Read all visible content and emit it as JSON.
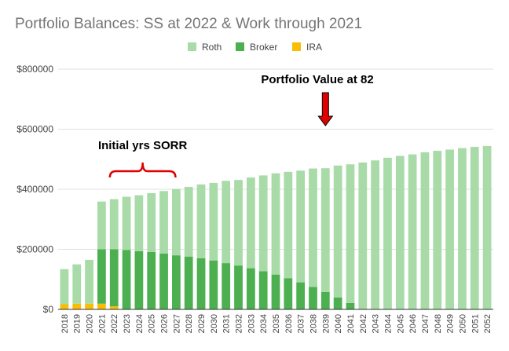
{
  "chart_data": {
    "type": "bar",
    "stacked": true,
    "title": "Portfolio Balances: SS at 2022 & Work through 2021",
    "xlabel": "",
    "ylabel": "",
    "ylim": [
      0,
      800000
    ],
    "y_ticks": [
      0,
      200000,
      400000,
      600000,
      800000
    ],
    "y_tick_labels": [
      "$0",
      "$200000",
      "$400000",
      "$600000",
      "$800000"
    ],
    "grid": true,
    "legend_position": "top",
    "categories": [
      "2018",
      "2019",
      "2020",
      "2021",
      "2022",
      "2023",
      "2024",
      "2025",
      "2026",
      "2027",
      "2028",
      "2029",
      "2030",
      "2031",
      "2032",
      "2033",
      "2034",
      "2035",
      "2036",
      "2037",
      "2038",
      "2039",
      "2040",
      "2041",
      "2042",
      "2043",
      "2044",
      "2045",
      "2046",
      "2047",
      "2048",
      "2049",
      "2050",
      "2051",
      "2052"
    ],
    "series": [
      {
        "name": "IRA",
        "color": "#fbbc04",
        "values": [
          17000,
          19000,
          19000,
          19000,
          10000,
          0,
          0,
          0,
          0,
          0,
          0,
          0,
          0,
          0,
          0,
          0,
          0,
          0,
          0,
          0,
          0,
          0,
          0,
          0,
          0,
          0,
          0,
          0,
          0,
          0,
          0,
          0,
          0,
          0,
          0
        ]
      },
      {
        "name": "Broker",
        "color": "#4caf50",
        "values": [
          0,
          0,
          0,
          181000,
          190000,
          198000,
          194000,
          191000,
          186000,
          180000,
          176000,
          170000,
          163000,
          154000,
          146000,
          137000,
          127000,
          116000,
          104000,
          90000,
          75000,
          58000,
          40000,
          21000,
          2000,
          2000,
          2000,
          2000,
          2000,
          2000,
          2000,
          2000,
          2000,
          2000,
          2000
        ]
      },
      {
        "name": "Roth",
        "color": "#a8dba8",
        "values": [
          117000,
          131000,
          146000,
          159000,
          167000,
          177000,
          186000,
          196000,
          208000,
          221000,
          232000,
          246000,
          258000,
          274000,
          285000,
          302000,
          319000,
          337000,
          354000,
          372000,
          394000,
          412000,
          439000,
          462000,
          487000,
          494000,
          503000,
          509000,
          514000,
          521000,
          526000,
          530000,
          535000,
          539000,
          542000
        ]
      }
    ],
    "legend": [
      {
        "label": "Roth",
        "color": "#a8dba8"
      },
      {
        "label": "Broker",
        "color": "#4caf50"
      },
      {
        "label": "IRA",
        "color": "#fbbc04"
      }
    ],
    "annotations": {
      "sorr": {
        "text": "Initial yrs SORR",
        "from_category": "2022",
        "to_category": "2026",
        "color": "#e00000"
      },
      "value82": {
        "text": "Portfolio Value at 82",
        "category": "2039",
        "color": "#e00000"
      }
    }
  }
}
